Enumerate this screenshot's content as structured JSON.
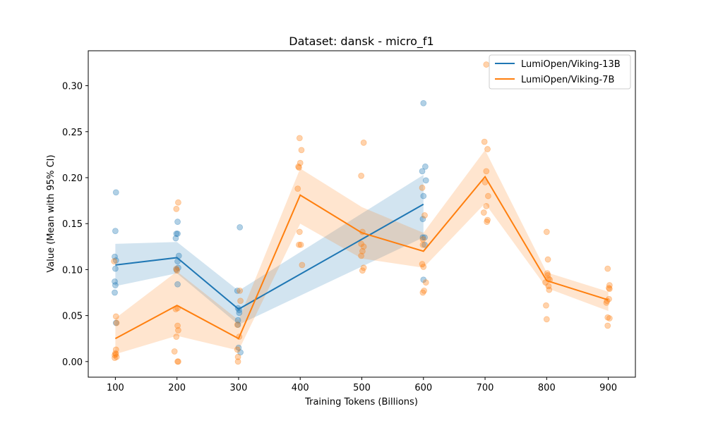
{
  "chart_data": {
    "type": "line",
    "title": "Dataset: dansk - micro_f1",
    "xlabel": "Training Tokens (Billions)",
    "ylabel": "Value (Mean with 95% CI)",
    "xlim": [
      56,
      944
    ],
    "ylim": [
      -0.017,
      0.338
    ],
    "xticks": [
      100,
      200,
      300,
      400,
      500,
      600,
      700,
      800,
      900
    ],
    "yticks": [
      0.0,
      0.05,
      0.1,
      0.15,
      0.2,
      0.25,
      0.3
    ],
    "grid": false,
    "legend_position": "top-right",
    "series": [
      {
        "name": "LumiOpen/Viking-13B",
        "color": "#1f77b4",
        "mean": [
          {
            "x": 100,
            "y": 0.105
          },
          {
            "x": 200,
            "y": 0.113
          },
          {
            "x": 300,
            "y": 0.057
          },
          {
            "x": 600,
            "y": 0.171
          }
        ],
        "ci_lower": [
          0.082,
          0.096,
          0.04,
          0.135
        ],
        "ci_upper": [
          0.128,
          0.13,
          0.077,
          0.203
        ],
        "points": [
          {
            "x": 101,
            "y": 0.184
          },
          {
            "x": 100,
            "y": 0.142
          },
          {
            "x": 99,
            "y": 0.114
          },
          {
            "x": 101,
            "y": 0.11
          },
          {
            "x": 100,
            "y": 0.101
          },
          {
            "x": 99,
            "y": 0.087
          },
          {
            "x": 100,
            "y": 0.083
          },
          {
            "x": 99,
            "y": 0.075
          },
          {
            "x": 101,
            "y": 0.042
          },
          {
            "x": 201,
            "y": 0.152
          },
          {
            "x": 199,
            "y": 0.139
          },
          {
            "x": 201,
            "y": 0.139
          },
          {
            "x": 198,
            "y": 0.134
          },
          {
            "x": 203,
            "y": 0.115
          },
          {
            "x": 201,
            "y": 0.109
          },
          {
            "x": 202,
            "y": 0.102
          },
          {
            "x": 199,
            "y": 0.1
          },
          {
            "x": 201,
            "y": 0.084
          },
          {
            "x": 302,
            "y": 0.146
          },
          {
            "x": 298,
            "y": 0.077
          },
          {
            "x": 299,
            "y": 0.058
          },
          {
            "x": 301,
            "y": 0.056
          },
          {
            "x": 301,
            "y": 0.053
          },
          {
            "x": 299,
            "y": 0.045
          },
          {
            "x": 299,
            "y": 0.04
          },
          {
            "x": 300,
            "y": 0.015
          },
          {
            "x": 303,
            "y": 0.01
          },
          {
            "x": 600,
            "y": 0.281
          },
          {
            "x": 603,
            "y": 0.212
          },
          {
            "x": 598,
            "y": 0.207
          },
          {
            "x": 604,
            "y": 0.197
          },
          {
            "x": 600,
            "y": 0.18
          },
          {
            "x": 599,
            "y": 0.155
          },
          {
            "x": 599,
            "y": 0.135
          },
          {
            "x": 602,
            "y": 0.135
          },
          {
            "x": 602,
            "y": 0.127
          },
          {
            "x": 600,
            "y": 0.089
          }
        ]
      },
      {
        "name": "LumiOpen/Viking-7B",
        "color": "#ff7f0e",
        "mean": [
          {
            "x": 100,
            "y": 0.025
          },
          {
            "x": 200,
            "y": 0.061
          },
          {
            "x": 300,
            "y": 0.025
          },
          {
            "x": 400,
            "y": 0.181
          },
          {
            "x": 500,
            "y": 0.14
          },
          {
            "x": 600,
            "y": 0.12
          },
          {
            "x": 700,
            "y": 0.201
          },
          {
            "x": 800,
            "y": 0.088
          },
          {
            "x": 900,
            "y": 0.067
          }
        ],
        "ci_lower": [
          0.008,
          0.028,
          0.012,
          0.15,
          0.112,
          0.102,
          0.172,
          0.08,
          0.055
        ],
        "ci_upper": [
          0.047,
          0.098,
          0.045,
          0.21,
          0.168,
          0.14,
          0.23,
          0.097,
          0.076
        ],
        "points": [
          {
            "x": 98,
            "y": 0.109
          },
          {
            "x": 101,
            "y": 0.049
          },
          {
            "x": 102,
            "y": 0.042
          },
          {
            "x": 101,
            "y": 0.013
          },
          {
            "x": 100,
            "y": 0.009
          },
          {
            "x": 99,
            "y": 0.007
          },
          {
            "x": 101,
            "y": 0.008
          },
          {
            "x": 99,
            "y": 0.004
          },
          {
            "x": 102,
            "y": 0.005
          },
          {
            "x": 202,
            "y": 0.173
          },
          {
            "x": 199,
            "y": 0.166
          },
          {
            "x": 199,
            "y": 0.101
          },
          {
            "x": 200,
            "y": 0.099
          },
          {
            "x": 201,
            "y": 0.058
          },
          {
            "x": 198,
            "y": 0.057
          },
          {
            "x": 201,
            "y": 0.039
          },
          {
            "x": 202,
            "y": 0.034
          },
          {
            "x": 199,
            "y": 0.027
          },
          {
            "x": 196,
            "y": 0.011
          },
          {
            "x": 201,
            "y": 0.0
          },
          {
            "x": 202,
            "y": 0.0
          },
          {
            "x": 302,
            "y": 0.077
          },
          {
            "x": 303,
            "y": 0.066
          },
          {
            "x": 298,
            "y": 0.04
          },
          {
            "x": 301,
            "y": 0.027
          },
          {
            "x": 298,
            "y": 0.013
          },
          {
            "x": 299,
            "y": 0.005
          },
          {
            "x": 299,
            "y": 0.0
          },
          {
            "x": 399,
            "y": 0.243
          },
          {
            "x": 402,
            "y": 0.23
          },
          {
            "x": 400,
            "y": 0.216
          },
          {
            "x": 397,
            "y": 0.212
          },
          {
            "x": 398,
            "y": 0.211
          },
          {
            "x": 396,
            "y": 0.188
          },
          {
            "x": 399,
            "y": 0.141
          },
          {
            "x": 398,
            "y": 0.127
          },
          {
            "x": 401,
            "y": 0.127
          },
          {
            "x": 403,
            "y": 0.105
          },
          {
            "x": 503,
            "y": 0.238
          },
          {
            "x": 499,
            "y": 0.202
          },
          {
            "x": 501,
            "y": 0.141
          },
          {
            "x": 503,
            "y": 0.125
          },
          {
            "x": 499,
            "y": 0.128
          },
          {
            "x": 501,
            "y": 0.12
          },
          {
            "x": 499,
            "y": 0.115
          },
          {
            "x": 503,
            "y": 0.102
          },
          {
            "x": 501,
            "y": 0.099
          },
          {
            "x": 598,
            "y": 0.189
          },
          {
            "x": 602,
            "y": 0.159
          },
          {
            "x": 599,
            "y": 0.133
          },
          {
            "x": 599,
            "y": 0.127
          },
          {
            "x": 598,
            "y": 0.106
          },
          {
            "x": 600,
            "y": 0.103
          },
          {
            "x": 604,
            "y": 0.086
          },
          {
            "x": 601,
            "y": 0.077
          },
          {
            "x": 599,
            "y": 0.075
          },
          {
            "x": 702,
            "y": 0.323
          },
          {
            "x": 699,
            "y": 0.239
          },
          {
            "x": 704,
            "y": 0.231
          },
          {
            "x": 702,
            "y": 0.207
          },
          {
            "x": 700,
            "y": 0.195
          },
          {
            "x": 705,
            "y": 0.18
          },
          {
            "x": 702,
            "y": 0.169
          },
          {
            "x": 698,
            "y": 0.162
          },
          {
            "x": 704,
            "y": 0.154
          },
          {
            "x": 703,
            "y": 0.152
          },
          {
            "x": 800,
            "y": 0.141
          },
          {
            "x": 802,
            "y": 0.111
          },
          {
            "x": 801,
            "y": 0.096
          },
          {
            "x": 802,
            "y": 0.094
          },
          {
            "x": 803,
            "y": 0.09
          },
          {
            "x": 805,
            "y": 0.089
          },
          {
            "x": 798,
            "y": 0.086
          },
          {
            "x": 803,
            "y": 0.082
          },
          {
            "x": 804,
            "y": 0.078
          },
          {
            "x": 799,
            "y": 0.061
          },
          {
            "x": 800,
            "y": 0.046
          },
          {
            "x": 899,
            "y": 0.101
          },
          {
            "x": 902,
            "y": 0.083
          },
          {
            "x": 901,
            "y": 0.08
          },
          {
            "x": 902,
            "y": 0.079
          },
          {
            "x": 901,
            "y": 0.068
          },
          {
            "x": 898,
            "y": 0.066
          },
          {
            "x": 897,
            "y": 0.064
          },
          {
            "x": 899,
            "y": 0.048
          },
          {
            "x": 902,
            "y": 0.047
          },
          {
            "x": 899,
            "y": 0.039
          }
        ]
      }
    ]
  }
}
